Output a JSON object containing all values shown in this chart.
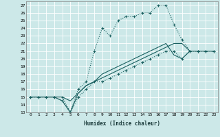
{
  "xlabel": "Humidex (Indice chaleur)",
  "bg_color": "#cce8e8",
  "grid_color": "#ffffff",
  "line_color": "#1a6060",
  "xlim": [
    -0.5,
    23.5
  ],
  "ylim": [
    13,
    27.5
  ],
  "yticks": [
    13,
    14,
    15,
    16,
    17,
    18,
    19,
    20,
    21,
    22,
    23,
    24,
    25,
    26,
    27
  ],
  "xticks": [
    0,
    1,
    2,
    3,
    4,
    5,
    6,
    7,
    8,
    9,
    10,
    11,
    12,
    13,
    14,
    15,
    16,
    17,
    18,
    19,
    20,
    21,
    22,
    23
  ],
  "lines": [
    {
      "x": [
        0,
        1,
        2,
        3,
        4,
        5,
        6,
        7,
        8,
        9,
        10,
        11,
        12,
        13,
        14,
        15,
        16,
        17,
        18,
        19,
        20,
        21,
        22,
        23
      ],
      "y": [
        15,
        15,
        15,
        15,
        15,
        13,
        16,
        17,
        21,
        24,
        23,
        25,
        25.5,
        25.5,
        26,
        26,
        27,
        27,
        24.5,
        22.5,
        21,
        21,
        21,
        21
      ],
      "style": "dotted",
      "marker": true
    },
    {
      "x": [
        0,
        1,
        2,
        3,
        4,
        5,
        6,
        7,
        8,
        9,
        10,
        11,
        12,
        13,
        14,
        15,
        16,
        17,
        18,
        19,
        20,
        21,
        22,
        23
      ],
      "y": [
        15,
        15,
        15,
        15,
        14.5,
        13,
        15.5,
        16.5,
        17,
        18,
        18.5,
        19,
        19.5,
        20,
        20.5,
        21,
        21.5,
        22,
        20.5,
        20,
        21,
        21,
        21,
        21
      ],
      "style": "solid",
      "marker": false
    },
    {
      "x": [
        0,
        1,
        2,
        3,
        4,
        5,
        6,
        7,
        8,
        9,
        10,
        11,
        12,
        13,
        14,
        15,
        16,
        17,
        18,
        19,
        20,
        21,
        22,
        23
      ],
      "y": [
        15,
        15,
        15,
        15,
        15,
        14.5,
        15.5,
        16.5,
        17,
        17.5,
        18,
        18.5,
        19,
        19.5,
        20,
        20.5,
        21,
        21.5,
        22,
        22,
        21,
        21,
        21,
        21
      ],
      "style": "solid",
      "marker": false
    },
    {
      "x": [
        0,
        1,
        2,
        3,
        4,
        5,
        6,
        7,
        8,
        9,
        10,
        11,
        12,
        13,
        14,
        15,
        16,
        17,
        18,
        19,
        20,
        21,
        22,
        23
      ],
      "y": [
        15,
        15,
        15,
        15,
        14.5,
        13,
        15,
        16,
        17,
        17,
        17.5,
        18,
        18.5,
        19,
        19.5,
        20,
        20.5,
        21,
        21,
        20,
        21,
        21,
        21,
        21
      ],
      "style": "dotted",
      "marker": true
    }
  ]
}
